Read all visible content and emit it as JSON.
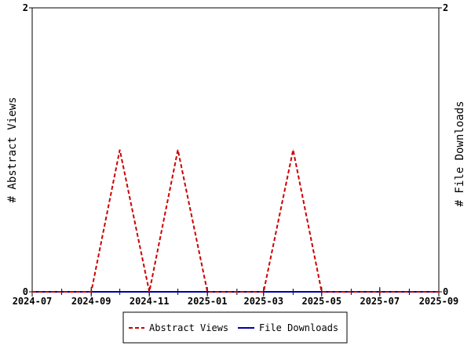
{
  "chart_data": {
    "type": "line",
    "x": [
      "2024-07-01",
      "2024-08-01",
      "2024-09-01",
      "2024-10-01",
      "2024-11-01",
      "2024-12-01",
      "2025-01-01",
      "2025-02-01",
      "2025-03-01",
      "2025-04-01",
      "2025-05-01",
      "2025-06-01",
      "2025-07-01",
      "2025-08-01",
      "2025-09-01"
    ],
    "series": [
      {
        "name": "Abstract Views",
        "color": "#cc0000",
        "style": "dashed",
        "axis": "left",
        "values": [
          0,
          0,
          0,
          1,
          0,
          1,
          0,
          0,
          0,
          1,
          0,
          0,
          0,
          0,
          0
        ]
      },
      {
        "name": "File Downloads",
        "color": "#0000aa",
        "style": "solid",
        "axis": "right",
        "values": [
          0,
          0,
          0,
          0,
          0,
          0,
          0,
          0,
          0,
          0,
          0,
          0,
          0,
          0,
          0
        ]
      }
    ],
    "xlim": [
      "2024-07-01",
      "2025-09-01"
    ],
    "xticks": [
      "2024-07",
      "2024-09",
      "2024-11",
      "2025-01",
      "2025-03",
      "2025-05",
      "2025-07",
      "2025-09"
    ],
    "ylabel": "# Abstract Views",
    "y2label": "# File Downloads",
    "ylim": [
      0,
      2
    ],
    "y2lim": [
      0,
      2
    ],
    "yticks": [
      "0",
      "2"
    ],
    "y2ticks": [
      "0",
      "2"
    ],
    "legend_position": "bottom",
    "grid": false
  }
}
